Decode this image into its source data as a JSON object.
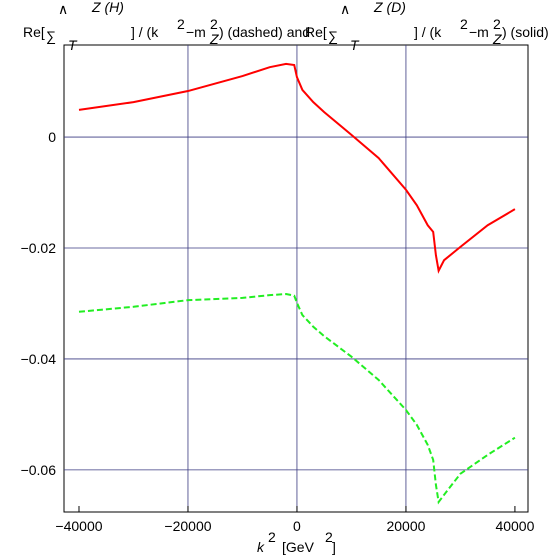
{
  "chart_data": {
    "type": "line",
    "title_parts": [
      "Re[",
      "∑",
      "∧",
      "Z (H)",
      "T",
      "] / (k",
      "2",
      "−m",
      "2",
      "Z",
      ") (dashed)  and",
      "Re[",
      "∑",
      "∧",
      "Z (D)",
      "T",
      "] / (k",
      "2",
      "−m",
      "2",
      "Z",
      ") (solid)"
    ],
    "x_label_parts": [
      "k",
      "2",
      "[GeV",
      "2",
      "]"
    ],
    "x": [
      -40000,
      -30000,
      -20000,
      -10000,
      -5000,
      -2000,
      -500,
      0,
      1000,
      3000,
      5000,
      10000,
      15000,
      20000,
      22000,
      24000,
      25000,
      25500,
      26000,
      27000,
      30000,
      35000,
      40000
    ],
    "series": [
      {
        "color": "#ff0000",
        "linestyle": "solid",
        "values": [
          0.0049,
          0.0063,
          0.0083,
          0.011,
          0.0126,
          0.0132,
          0.013,
          0.0108,
          0.0085,
          0.0063,
          0.0045,
          0.0004,
          -0.0038,
          -0.0095,
          -0.0123,
          -0.0159,
          -0.0171,
          -0.0213,
          -0.0241,
          -0.0222,
          -0.0198,
          -0.0159,
          -0.013
        ]
      },
      {
        "color": "#22ee22",
        "linestyle": "dashed",
        "values": [
          -0.0315,
          -0.0306,
          -0.0294,
          -0.029,
          -0.0285,
          -0.0283,
          -0.0286,
          -0.0299,
          -0.0321,
          -0.0342,
          -0.0359,
          -0.0396,
          -0.0438,
          -0.0492,
          -0.0519,
          -0.0555,
          -0.0582,
          -0.0627,
          -0.0658,
          -0.0645,
          -0.0607,
          -0.0573,
          -0.0542
        ]
      }
    ],
    "xlim": [
      -42750,
      42400
    ],
    "ylim": [
      -0.0676,
      0.0166
    ],
    "xticks": [
      {
        "value": -40000,
        "label": "−40000"
      },
      {
        "value": -20000,
        "label": "−20000"
      },
      0,
      20000,
      40000
    ],
    "yticks": [
      0,
      {
        "value": -0.02,
        "label": "−0.02"
      },
      {
        "value": -0.04,
        "label": "−0.04"
      },
      {
        "value": -0.06,
        "label": "−0.06"
      }
    ],
    "xgrid": [
      -20000,
      0,
      20000
    ],
    "grid_color": "#3a3a80"
  }
}
